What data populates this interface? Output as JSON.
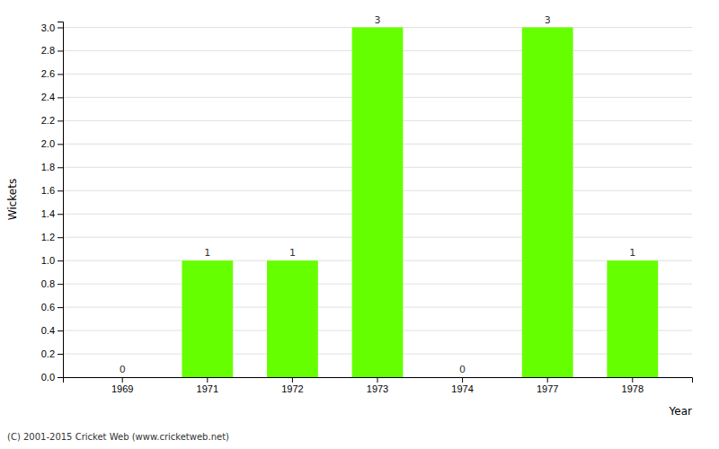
{
  "chart_data": {
    "type": "bar",
    "categories": [
      "1969",
      "1971",
      "1972",
      "1973",
      "1974",
      "1977",
      "1978"
    ],
    "values": [
      0,
      1,
      1,
      3,
      0,
      3,
      1
    ],
    "color": "#66ff00",
    "xlabel": "Year",
    "ylabel": "Wickets",
    "ylim": [
      0.0,
      3.05
    ],
    "yticks": [
      {
        "value": 0.0,
        "label": "0.0"
      },
      0.2,
      0.4,
      0.6,
      0.8,
      {
        "value": 1.0,
        "label": "1.0"
      },
      1.2,
      1.4,
      1.6,
      1.8,
      {
        "value": 2.0,
        "label": "2.0"
      },
      2.2,
      2.4,
      2.6,
      2.8,
      {
        "value": 3.0,
        "label": "3.0"
      }
    ],
    "grid": true,
    "data_labels": true,
    "annotations": [
      "(C) 2001-2015 Cricket Web (www.cricketweb.net)"
    ]
  }
}
